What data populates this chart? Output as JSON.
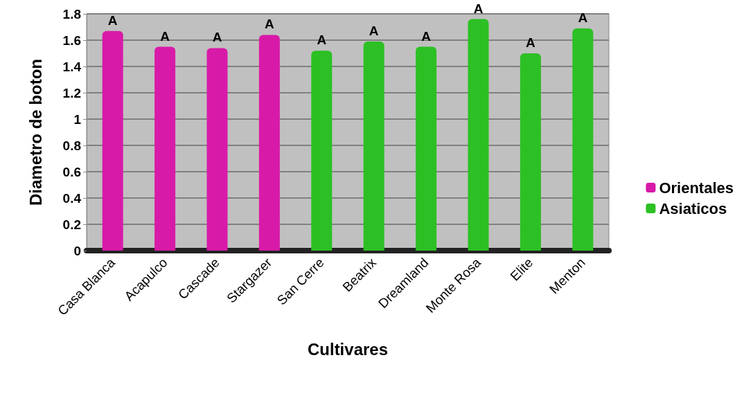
{
  "chart_data": {
    "type": "bar",
    "xlabel": "Cultivares",
    "ylabel": "Diametro de boton",
    "categories": [
      "Casa Blanca",
      "Acapulco",
      "Cascade",
      "Stargazer",
      "San Cerre",
      "Beatrix",
      "Dreamland",
      "Monte Rosa",
      "Elite",
      "Menton"
    ],
    "series": [
      {
        "name": "Orientales",
        "color": "#d81aa8",
        "values": [
          1.67,
          1.55,
          1.54,
          1.64,
          null,
          null,
          null,
          null,
          null,
          null
        ],
        "value_labels": [
          "A",
          "A",
          "A",
          "A",
          null,
          null,
          null,
          null,
          null,
          null
        ]
      },
      {
        "name": "Asiaticos",
        "color": "#2cc024",
        "values": [
          null,
          null,
          null,
          null,
          1.52,
          1.59,
          1.55,
          1.76,
          1.5,
          1.69
        ],
        "value_labels": [
          null,
          null,
          null,
          null,
          "A",
          "A",
          "A",
          "A",
          "A",
          "A"
        ]
      }
    ],
    "stacked": true,
    "ylim": [
      0,
      1.8
    ],
    "yticks": [
      0,
      0.2,
      0.4,
      0.6,
      0.8,
      1,
      1.2,
      1.4,
      1.6,
      1.8
    ],
    "grid": "y",
    "legend": "right"
  }
}
